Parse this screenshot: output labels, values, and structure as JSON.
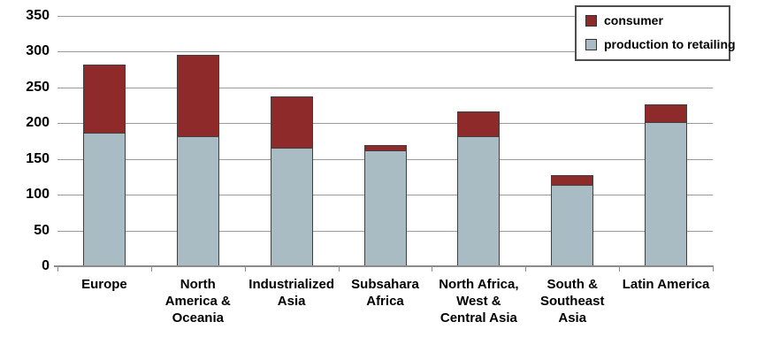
{
  "chart_data": {
    "type": "bar",
    "stacked": true,
    "title": "",
    "xlabel": "",
    "ylabel": "",
    "ylim": [
      0,
      350
    ],
    "yticks": [
      0,
      50,
      100,
      150,
      200,
      250,
      300,
      350
    ],
    "grid": "horizontal",
    "legend_position": "top-right",
    "categories": [
      "Europe",
      "North America & Oceania",
      "Industrialized Asia",
      "Subsahara Africa",
      "North Africa, West & Central Asia",
      "South & Southeast Asia",
      "Latin America"
    ],
    "category_label_lines": [
      [
        "Europe"
      ],
      [
        "North",
        "America &",
        "Oceania"
      ],
      [
        "Industrialized",
        "Asia"
      ],
      [
        "Subsahara",
        "Africa"
      ],
      [
        "North Africa,",
        "West &",
        "Central Asia"
      ],
      [
        "South &",
        "Southeast",
        "Asia"
      ],
      [
        "Latin America"
      ]
    ],
    "series": [
      {
        "name": "consumer",
        "color": "#8f2a2b",
        "values": [
          96,
          115,
          74,
          9,
          35,
          14,
          26
        ]
      },
      {
        "name": "production to retailing",
        "color": "#a9bcc4",
        "values": [
          186,
          181,
          164,
          161,
          181,
          113,
          200
        ]
      }
    ],
    "totals": [
      282,
      296,
      238,
      170,
      216,
      127,
      226
    ]
  },
  "colors": {
    "consumer": "#8f2a2b",
    "production_to_retailing": "#a9bcc4",
    "gridline": "#9b9b9b",
    "bar_border": "#3f3f3f"
  }
}
